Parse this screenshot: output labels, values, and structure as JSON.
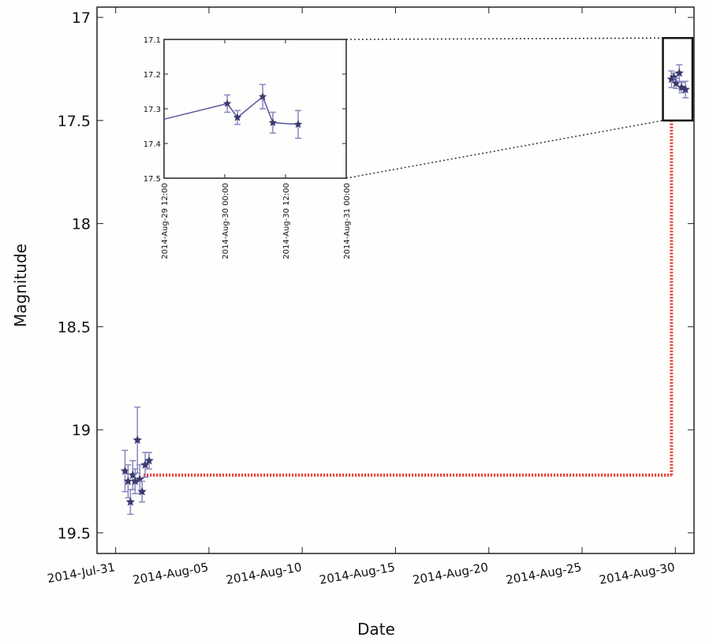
{
  "chart_data": [
    {
      "type": "scatter",
      "role": "main",
      "xlabel": "Date",
      "ylabel": "Magnitude",
      "y_inverted": true,
      "ylim": [
        19.6,
        16.95
      ],
      "xlim": [
        "2014-07-30",
        "2014-08-31"
      ],
      "y_ticks": [
        "17",
        "17.5",
        "18",
        "18.5",
        "19",
        "19.5"
      ],
      "y_tick_values": [
        17,
        17.5,
        18,
        18.5,
        19,
        19.5
      ],
      "x_ticks": [
        "2014-Jul-31",
        "2014-Aug-05",
        "2014-Aug-10",
        "2014-Aug-15",
        "2014-Aug-20",
        "2014-Aug-25",
        "2014-Aug-30"
      ],
      "x_tick_dates": [
        "2014-07-31",
        "2014-08-05",
        "2014-08-10",
        "2014-08-15",
        "2014-08-20",
        "2014-08-25",
        "2014-08-30"
      ],
      "series": [
        {
          "marker": "star",
          "color": "#3a3a6e",
          "errorbar_color": "#8a86c0",
          "points": [
            {
              "x": "2014-07-31T12:00",
              "y": 19.2,
              "err": 0.1
            },
            {
              "x": "2014-07-31T16:00",
              "y": 19.25,
              "err": 0.08
            },
            {
              "x": "2014-07-31T19:00",
              "y": 19.35,
              "err": 0.06
            },
            {
              "x": "2014-07-31T22:00",
              "y": 19.22,
              "err": 0.07
            },
            {
              "x": "2014-08-01T01:00",
              "y": 19.25,
              "err": 0.06
            },
            {
              "x": "2014-08-01T04:00",
              "y": 19.05,
              "err": 0.16
            },
            {
              "x": "2014-08-01T07:00",
              "y": 19.24,
              "err": 0.07
            },
            {
              "x": "2014-08-01T10:00",
              "y": 19.3,
              "err": 0.05
            },
            {
              "x": "2014-08-01T14:00",
              "y": 19.17,
              "err": 0.06
            },
            {
              "x": "2014-08-01T19:00",
              "y": 19.15,
              "err": 0.04
            },
            {
              "x": "2014-08-29T19:00",
              "y": 17.3,
              "err": 0.04
            },
            {
              "x": "2014-08-29T22:00",
              "y": 17.29,
              "err": 0.02
            },
            {
              "x": "2014-08-30T01:00",
              "y": 17.32,
              "err": 0.025
            },
            {
              "x": "2014-08-30T05:00",
              "y": 17.27,
              "err": 0.04
            },
            {
              "x": "2014-08-30T08:00",
              "y": 17.34,
              "err": 0.025
            },
            {
              "x": "2014-08-30T13:00",
              "y": 17.35,
              "err": 0.04
            }
          ]
        }
      ],
      "reference_lines": {
        "color": "#e8322a",
        "style": "dotted",
        "horizontal_y": 19.22,
        "horizontal_from": "2014-08-01T12:00",
        "horizontal_to": "2014-08-29T19:00",
        "vertical_x": "2014-08-29T19:00",
        "vertical_from": 19.22,
        "vertical_to": 17.5
      },
      "zoom_box": {
        "x_from": "2014-08-29T08:00",
        "x_to": "2014-08-30T22:00",
        "y_from": 17.1,
        "y_to": 17.5
      },
      "grid": false
    },
    {
      "type": "line",
      "role": "inset",
      "ylim": [
        17.5,
        17.1
      ],
      "y_inverted": true,
      "y_ticks": [
        "17.1",
        "17.2",
        "17.3",
        "17.4",
        "17.5"
      ],
      "y_tick_values": [
        17.1,
        17.2,
        17.3,
        17.4,
        17.5
      ],
      "xlim": [
        "2014-08-29T12:00",
        "2014-08-31T00:00"
      ],
      "x_ticks": [
        "2014-Aug-29 12:00",
        "2014-Aug-30 00:00",
        "2014-Aug-30 12:00",
        "2014-Aug-31 00:00"
      ],
      "x_tick_dates": [
        "2014-08-29T12:00",
        "2014-08-30T00:00",
        "2014-08-30T12:00",
        "2014-08-31T00:00"
      ],
      "series": [
        {
          "marker": "star",
          "color": "#3a3a6e",
          "line_color": "#5a56a0",
          "errorbar_color": "#8a86c0",
          "points": [
            {
              "x": "2014-08-29T12:00",
              "y": 17.33,
              "err": 0
            },
            {
              "x": "2014-08-30T00:30",
              "y": 17.285,
              "err": 0.025
            },
            {
              "x": "2014-08-30T02:30",
              "y": 17.325,
              "err": 0.02
            },
            {
              "x": "2014-08-30T07:30",
              "y": 17.265,
              "err": 0.035
            },
            {
              "x": "2014-08-30T09:30",
              "y": 17.34,
              "err": 0.03
            },
            {
              "x": "2014-08-30T14:30",
              "y": 17.345,
              "err": 0.04
            }
          ]
        }
      ],
      "grid": false
    }
  ]
}
